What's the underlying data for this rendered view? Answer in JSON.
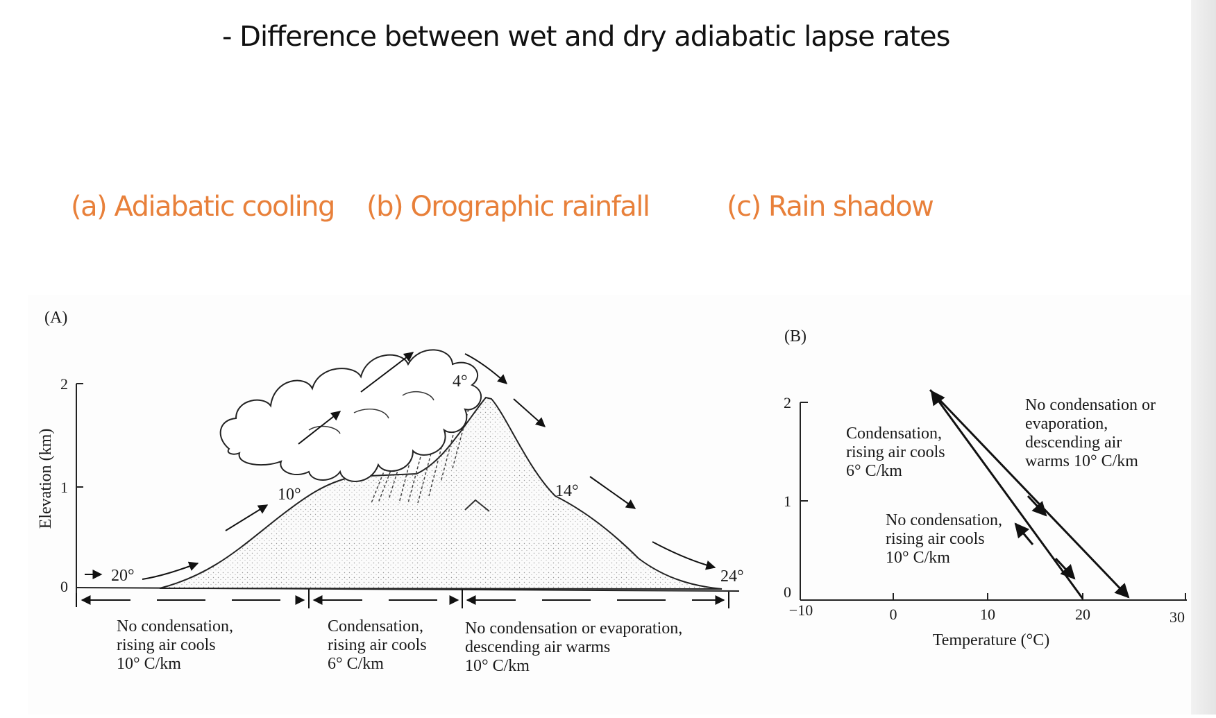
{
  "title": "- Difference between wet and dry adiabatic lapse rates",
  "subtitles": {
    "a": "(a) Adiabatic cooling",
    "b": "(b) Orographic rainfall",
    "c": "(c) Rain shadow"
  },
  "panel_a": {
    "label": "(A)",
    "ylabel": "Elevation (km)",
    "yticks": [
      "0",
      "1",
      "2"
    ],
    "temps": {
      "t1": "20°",
      "t2": "10°",
      "t3": "4°",
      "t4": "14°",
      "t5": "24°"
    },
    "captions": {
      "left": [
        "No condensation,",
        "rising air cools",
        "10° C/km"
      ],
      "middle": [
        "Condensation,",
        "rising air cools",
        "6° C/km"
      ],
      "right": [
        "No condensation or evaporation,",
        "descending air warms",
        "10° C/km"
      ]
    }
  },
  "panel_b": {
    "label": "(B)",
    "xlabel": "Temperature (°C)",
    "xticks": [
      "−10",
      "0",
      "10",
      "20",
      "30"
    ],
    "yticks": [
      "0",
      "1",
      "2"
    ],
    "notes": {
      "condensation": [
        "Condensation,",
        "rising air cools",
        "6° C/km"
      ],
      "descending": [
        "No condensation or",
        "evaporation,",
        "descending air",
        "warms 10° C/km"
      ],
      "rising": [
        "No condensation,",
        "rising air cools",
        "10° C/km"
      ]
    }
  }
}
